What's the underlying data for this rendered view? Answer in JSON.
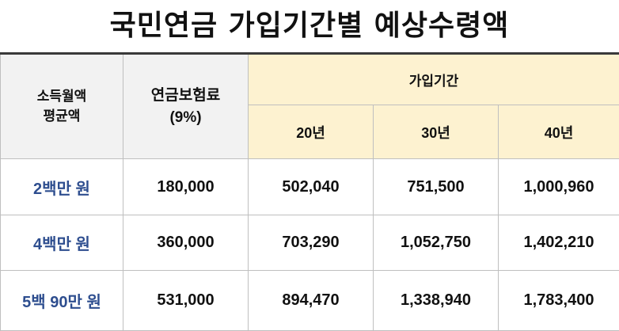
{
  "title": "국민연금 가입기간별 예상수령액",
  "table": {
    "headers": {
      "income_line1": "소득월액",
      "income_line2": "평균액",
      "premium_line1": "연금보험료",
      "premium_line2": "(9%)",
      "period": "가입기간",
      "periods": [
        "20년",
        "30년",
        "40년"
      ]
    },
    "rows": [
      {
        "income": "2백만 원",
        "premium": "180,000",
        "y20": "502,040",
        "y30": "751,500",
        "y40": "1,000,960"
      },
      {
        "income": "4백만 원",
        "premium": "360,000",
        "y20": "703,290",
        "y30": "1,052,750",
        "y40": "1,402,210"
      },
      {
        "income": "5백 90만 원",
        "premium": "531,000",
        "y20": "894,470",
        "y30": "1,338,940",
        "y40": "1,783,400"
      }
    ]
  },
  "colors": {
    "header_gray": "#f2f2f2",
    "header_yellow": "#fdf2d0",
    "income_text": "#2e4e8f"
  }
}
